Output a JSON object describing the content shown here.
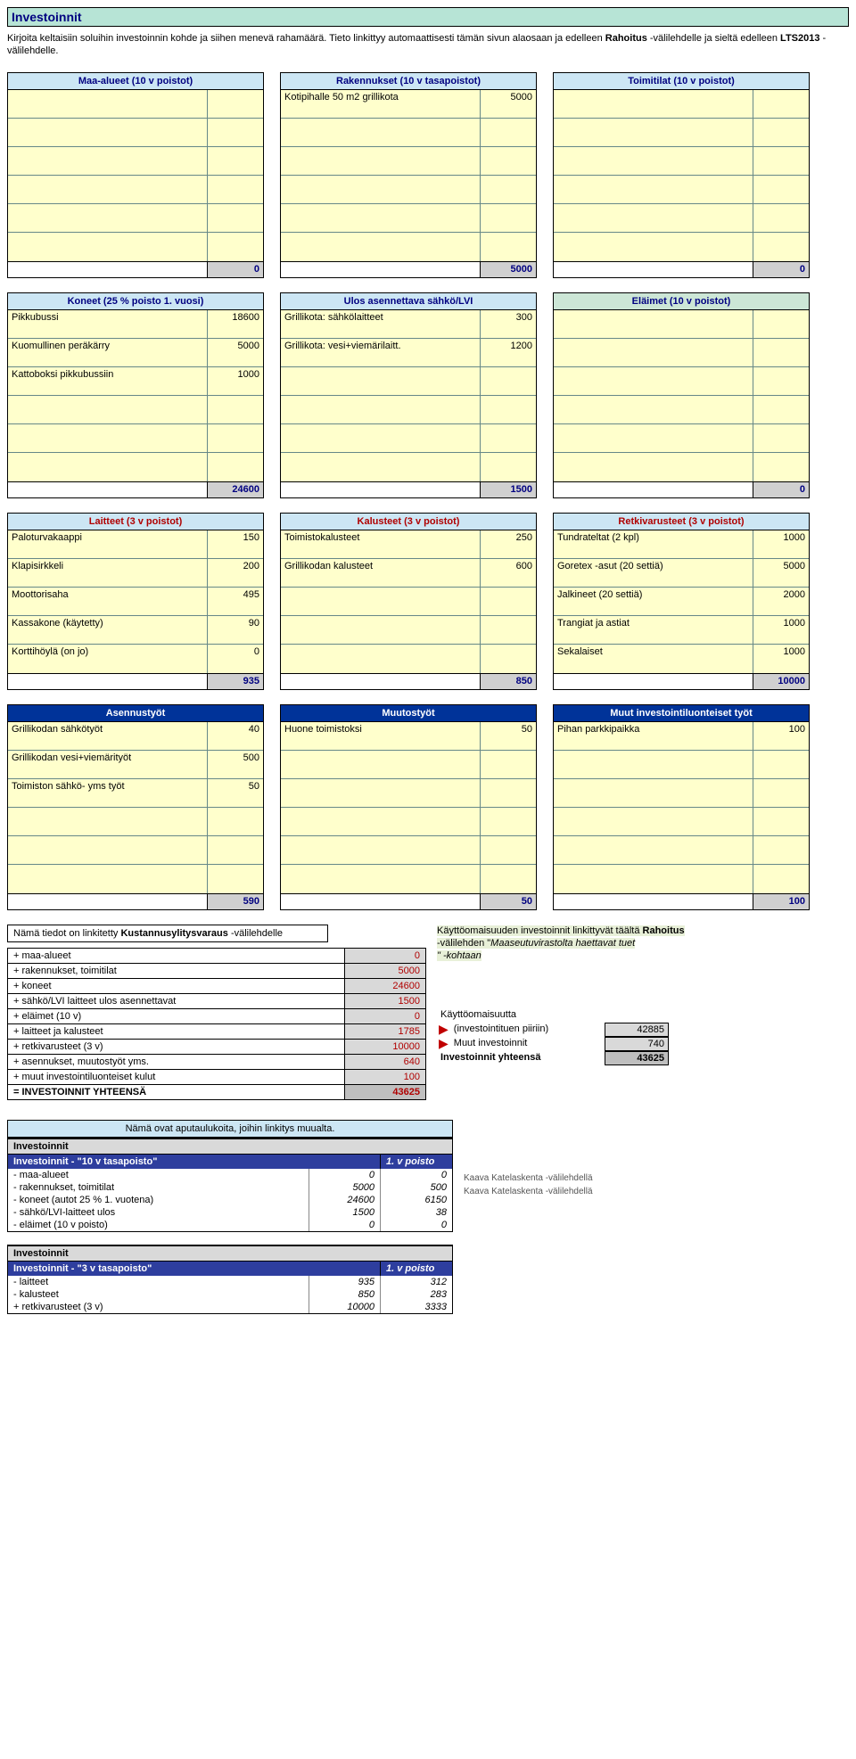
{
  "title": "Investoinnit",
  "intro1": "Kirjoita keltaisiin soluihin investoinnin kohde ja siihen menevä rahamäärä. Tieto linkittyy automaattisesti tämän sivun alaosaan ja edelleen ",
  "intro_b1": "Rahoitus",
  "intro2": " -välilehdelle ja sieltä edelleen ",
  "intro_b2": "LTS2013",
  "intro3": " -välilehdelle.",
  "block1": {
    "a": {
      "title": "Maa-alueet (10 v poistot)",
      "rows": [
        [
          "",
          ""
        ],
        [
          "",
          ""
        ],
        [
          "",
          ""
        ],
        [
          "",
          ""
        ],
        [
          "",
          ""
        ],
        [
          "",
          ""
        ]
      ],
      "total": "0"
    },
    "b": {
      "title": "Rakennukset (10 v tasapoistot)",
      "rows": [
        [
          "Kotipihalle 50 m2 grillikota",
          "5000"
        ],
        [
          "",
          ""
        ],
        [
          "",
          ""
        ],
        [
          "",
          ""
        ],
        [
          "",
          ""
        ],
        [
          "",
          ""
        ]
      ],
      "total": "5000"
    },
    "c": {
      "title": "Toimitilat (10 v poistot)",
      "rows": [
        [
          "",
          ""
        ],
        [
          "",
          ""
        ],
        [
          "",
          ""
        ],
        [
          "",
          ""
        ],
        [
          "",
          ""
        ],
        [
          "",
          ""
        ]
      ],
      "total": "0"
    }
  },
  "block2": {
    "a": {
      "title": "Koneet (25 % poisto 1. vuosi)",
      "rows": [
        [
          "Pikkubussi",
          "18600"
        ],
        [
          "Kuomullinen peräkärry",
          "5000"
        ],
        [
          "Kattoboksi pikkubussiin",
          "1000"
        ],
        [
          "",
          ""
        ],
        [
          "",
          ""
        ],
        [
          "",
          ""
        ]
      ],
      "total": "24600"
    },
    "b": {
      "title": "Ulos asennettava sähkö/LVI",
      "rows": [
        [
          "Grillikota: sähkölaitteet",
          "300"
        ],
        [
          "Grillikota: vesi+viemärilaitt.",
          "1200"
        ],
        [
          "",
          ""
        ],
        [
          "",
          ""
        ],
        [
          "",
          ""
        ],
        [
          "",
          ""
        ]
      ],
      "total": "1500"
    },
    "c": {
      "title": "Eläimet (10 v poistot)",
      "rows": [
        [
          "",
          ""
        ],
        [
          "",
          ""
        ],
        [
          "",
          ""
        ],
        [
          "",
          ""
        ],
        [
          "",
          ""
        ],
        [
          "",
          ""
        ]
      ],
      "total": "0"
    }
  },
  "block3": {
    "a": {
      "title": "Laitteet (3 v poistot)",
      "rows": [
        [
          "Paloturvakaappi",
          "150"
        ],
        [
          "Klapisirkkeli",
          "200"
        ],
        [
          "Moottorisaha",
          "495"
        ],
        [
          "Kassakone (käytetty)",
          "90"
        ],
        [
          "Korttihöylä (on jo)",
          "0"
        ]
      ],
      "total": "935"
    },
    "b": {
      "title": "Kalusteet (3 v poistot)",
      "rows": [
        [
          "Toimistokalusteet",
          "250"
        ],
        [
          "Grillikodan kalusteet",
          "600"
        ],
        [
          "",
          ""
        ],
        [
          "",
          ""
        ],
        [
          "",
          ""
        ]
      ],
      "total": "850"
    },
    "c": {
      "title": "Retkivarusteet (3 v poistot)",
      "rows": [
        [
          "Tundrateltat (2 kpl)",
          "1000"
        ],
        [
          "Goretex -asut (20 settiä)",
          "5000"
        ],
        [
          "Jalkineet (20 settiä)",
          "2000"
        ],
        [
          "Trangiat ja astiat",
          "1000"
        ],
        [
          "Sekalaiset",
          "1000"
        ]
      ],
      "total": "10000"
    }
  },
  "block4": {
    "a": {
      "title": "Asennustyöt",
      "rows": [
        [
          "Grillikodan sähkötyöt",
          "40"
        ],
        [
          "Grillikodan vesi+viemärityöt",
          "500"
        ],
        [
          "Toimiston sähkö- yms työt",
          "50"
        ],
        [
          "",
          ""
        ],
        [
          "",
          ""
        ],
        [
          "",
          ""
        ]
      ],
      "total": "590"
    },
    "b": {
      "title": "Muutostyöt",
      "rows": [
        [
          "Huone toimistoksi",
          "50"
        ],
        [
          "",
          ""
        ],
        [
          "",
          ""
        ],
        [
          "",
          ""
        ],
        [
          "",
          ""
        ],
        [
          "",
          ""
        ]
      ],
      "total": "50"
    },
    "c": {
      "title": "Muut investointiluonteiset työt",
      "rows": [
        [
          "Pihan parkkipaikka",
          "100"
        ],
        [
          "",
          ""
        ],
        [
          "",
          ""
        ],
        [
          "",
          ""
        ],
        [
          "",
          ""
        ],
        [
          "",
          ""
        ]
      ],
      "total": "100"
    }
  },
  "link_caption_pre": "Nämä tiedot on linkitetty ",
  "link_caption_b": "Kustannusylitysvaraus",
  "link_caption_post": " -välilehdelle",
  "summary": [
    {
      "l": "+ maa-alueet",
      "r": "0"
    },
    {
      "l": "+ rakennukset, toimitilat",
      "r": "5000"
    },
    {
      "l": "+ koneet",
      "r": "24600"
    },
    {
      "l": "+ sähkö/LVI laitteet ulos asennettavat",
      "r": "1500"
    },
    {
      "l": "+ eläimet (10 v)",
      "r": "0"
    },
    {
      "l": "+ laitteet ja kalusteet",
      "r": "1785"
    },
    {
      "l": "+ retkivarusteet (3 v)",
      "r": "10000"
    },
    {
      "l": "+ asennukset, muutostyöt yms.",
      "r": "640"
    },
    {
      "l": "+ muut investointiluonteiset kulut",
      "r": "100"
    }
  ],
  "summary_total": {
    "l": "= INVESTOINNIT YHTEENSÄ",
    "r": "43625"
  },
  "note1": "Käyttöomaisuuden investoinnit linkittyvät täältä ",
  "note_b": "Rahoitus",
  "note2": " -välilehden \"",
  "note_i": "Maaseutuvirastolta haettavat tuet",
  "note3": "\" -kohtaan",
  "kaytto": [
    {
      "l": "Käyttöomaisuutta",
      "r": ""
    },
    {
      "l": "(investointituen piiriin)",
      "r": "42885"
    },
    {
      "l": "Muut investoinnit",
      "r": "740"
    },
    {
      "l": "Investoinnit yhteensä",
      "r": "43625",
      "bold": true
    }
  ],
  "aux_caption": "Nämä ovat aputaulukoita, joihin linkitys muualta.",
  "aux1": {
    "title": "Investoinnit",
    "hdr": {
      "l": "Investoinnit - \"10 v tasapoisto\"",
      "r": "1. v poisto"
    },
    "rows": [
      {
        "l": "- maa-alueet",
        "v1": "0",
        "v2": "0"
      },
      {
        "l": "- rakennukset, toimitilat",
        "v1": "5000",
        "v2": "500"
      },
      {
        "l": "- koneet (autot 25 % 1. vuotena)",
        "v1": "24600",
        "v2": "6150"
      },
      {
        "l": "- sähkö/LVI-laitteet ulos",
        "v1": "1500",
        "v2": "38"
      },
      {
        "l": "- eläimet (10 v poisto)",
        "v1": "0",
        "v2": "0"
      }
    ]
  },
  "aux_comments": [
    "Kaava Katelaskenta -välilehdellä",
    "Kaava Katelaskenta -välilehdellä"
  ],
  "aux2": {
    "title": "Investoinnit",
    "hdr": {
      "l": "Investoinnit - \"3 v tasapoisto\"",
      "r": "1. v poisto"
    },
    "rows": [
      {
        "l": "- laitteet",
        "v1": "935",
        "v2": "312"
      },
      {
        "l": "- kalusteet",
        "v1": "850",
        "v2": "283"
      },
      {
        "l": "+ retkivarusteet (3 v)",
        "v1": "10000",
        "v2": "3333"
      }
    ]
  }
}
